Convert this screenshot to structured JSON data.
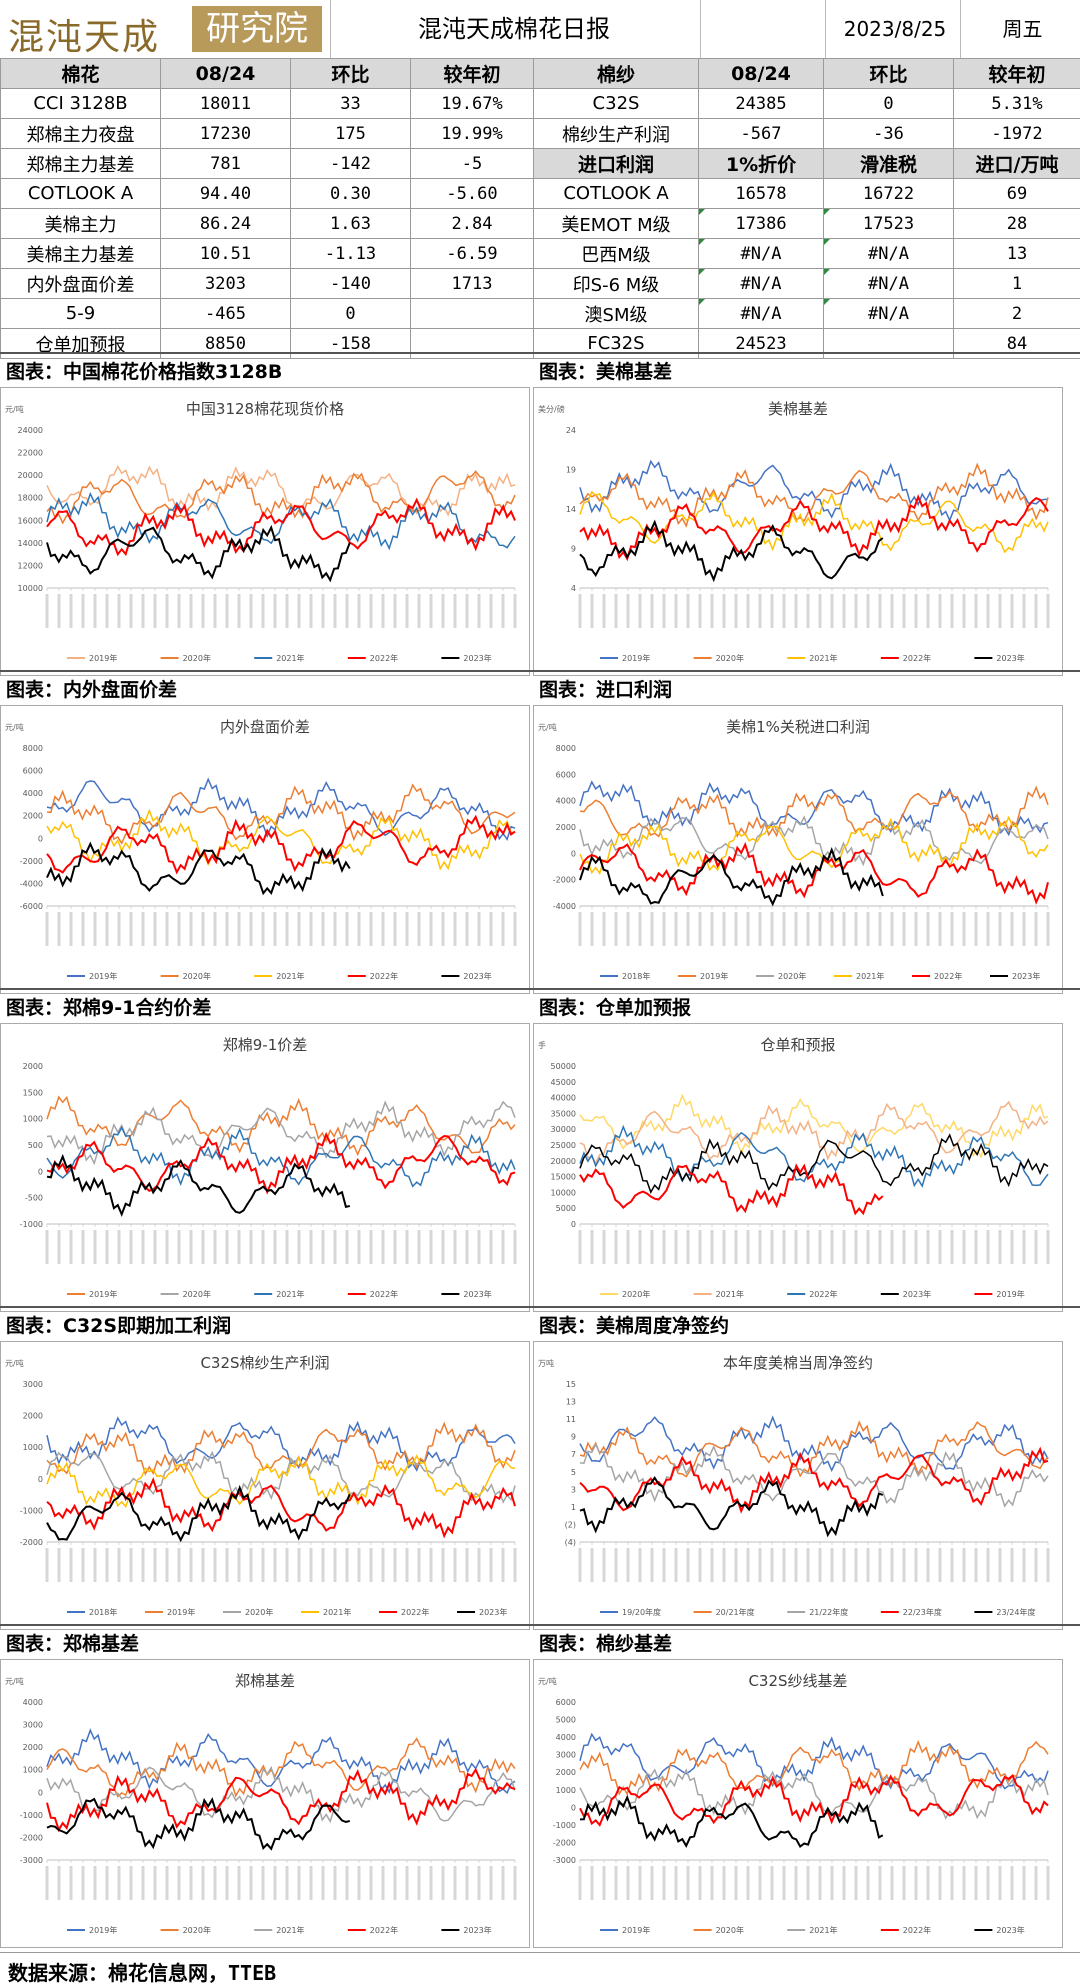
{
  "header": {
    "logo_text": "混沌天成",
    "logo_box_text": "研究院",
    "title": "混沌天成棉花日报",
    "date": "2023/8/25",
    "weekday": "周五"
  },
  "left_table": {
    "headers": [
      "棉花",
      "08/24",
      "环比",
      "较年初"
    ],
    "rows": [
      [
        "CCI 3128B",
        "18011",
        "33",
        "19.67%"
      ],
      [
        "郑棉主力夜盘",
        "17230",
        "175",
        "19.99%"
      ],
      [
        "郑棉主力基差",
        "781",
        "-142",
        "-5"
      ],
      [
        "COTLOOK A",
        "94.40",
        "0.30",
        "-5.60"
      ],
      [
        "美棉主力",
        "86.24",
        "1.63",
        "2.84"
      ],
      [
        "美棉主力基差",
        "10.51",
        "-1.13",
        "-6.59"
      ],
      [
        "内外盘面价差",
        "3203",
        "-140",
        "1713"
      ],
      [
        "5-9",
        "-465",
        "0",
        ""
      ],
      [
        "仓单加预报",
        "8850",
        "-158",
        ""
      ]
    ]
  },
  "right_table": {
    "headers": [
      "棉纱",
      "08/24",
      "环比",
      "较年初"
    ],
    "rows_top": [
      [
        "C32S",
        "24385",
        "0",
        "5.31%"
      ],
      [
        "棉纱生产利润",
        "-567",
        "-36",
        "-1972"
      ]
    ],
    "sub_headers": [
      "进口利润",
      "1%折价",
      "滑准税",
      "进口/万吨"
    ],
    "rows_bottom": [
      [
        "COTLOOK A",
        "16578",
        "16722",
        "69"
      ],
      [
        "美EMOT M级",
        "17386",
        "17523",
        "28"
      ],
      [
        "巴西M级",
        "#N/A",
        "#N/A",
        "13"
      ],
      [
        "印S-6 M级",
        "#N/A",
        "#N/A",
        "1"
      ],
      [
        "澳SM级",
        "#N/A",
        "#N/A",
        "2"
      ],
      [
        "FC32S",
        "24523",
        "",
        "84"
      ]
    ]
  },
  "panels": [
    {
      "label": "图表：中国棉花价格指数3128B",
      "chart_title": "中国3128棉花现货价格",
      "unit": "元/吨",
      "yticks": [
        "24000",
        "22000",
        "20000",
        "18000",
        "16000",
        "14000",
        "12000",
        "10000"
      ],
      "legend": [
        {
          "name": "2019年",
          "color": "#f4b183"
        },
        {
          "name": "2020年",
          "color": "#ed7d31"
        },
        {
          "name": "2021年",
          "color": "#2e75b6"
        },
        {
          "name": "2022年",
          "color": "#ff0000"
        },
        {
          "name": "2023年",
          "color": "#000000"
        }
      ]
    },
    {
      "label": "图表：美棉基差",
      "chart_title": "美棉基差",
      "unit": "美分/磅",
      "yticks": [
        "24",
        "19",
        "14",
        "9",
        "4"
      ],
      "legend": [
        {
          "name": "2019年",
          "color": "#4472c4"
        },
        {
          "name": "2020年",
          "color": "#ed7d31"
        },
        {
          "name": "2021年",
          "color": "#ffc000"
        },
        {
          "name": "2022年",
          "color": "#ff0000"
        },
        {
          "name": "2023年",
          "color": "#000000"
        }
      ]
    },
    {
      "label": "图表：内外盘面价差",
      "chart_title": "内外盘面价差",
      "unit": "元/吨",
      "yticks": [
        "8000",
        "6000",
        "4000",
        "2000",
        "0",
        "-2000",
        "-4000",
        "-6000"
      ],
      "legend": [
        {
          "name": "2019年",
          "color": "#4472c4"
        },
        {
          "name": "2020年",
          "color": "#ed7d31"
        },
        {
          "name": "2021年",
          "color": "#ffc000"
        },
        {
          "name": "2022年",
          "color": "#ff0000"
        },
        {
          "name": "2023年",
          "color": "#000000"
        }
      ]
    },
    {
      "label": "图表：进口利润",
      "chart_title": "美棉1%关税进口利润",
      "unit": "元/吨",
      "yticks": [
        "8000",
        "6000",
        "4000",
        "2000",
        "0",
        "-2000",
        "-4000"
      ],
      "legend": [
        {
          "name": "2018年",
          "color": "#4472c4"
        },
        {
          "name": "2019年",
          "color": "#ed7d31"
        },
        {
          "name": "2020年",
          "color": "#a5a5a5"
        },
        {
          "name": "2021年",
          "color": "#ffc000"
        },
        {
          "name": "2022年",
          "color": "#ff0000"
        },
        {
          "name": "2023年",
          "color": "#000000"
        }
      ]
    },
    {
      "label": "图表：郑棉9-1合约价差",
      "chart_title": "郑棉9-1价差",
      "unit": "",
      "yticks": [
        "2000",
        "1500",
        "1000",
        "500",
        "0",
        "-500",
        "-1000"
      ],
      "legend": [
        {
          "name": "2019年",
          "color": "#ed7d31"
        },
        {
          "name": "2020年",
          "color": "#a5a5a5"
        },
        {
          "name": "2021年",
          "color": "#2e75b6"
        },
        {
          "name": "2022年",
          "color": "#ff0000"
        },
        {
          "name": "2023年",
          "color": "#000000"
        }
      ]
    },
    {
      "label": "图表：仓单加预报",
      "chart_title": "仓单和预报",
      "unit": "手",
      "yticks": [
        "50000",
        "45000",
        "40000",
        "35000",
        "30000",
        "25000",
        "20000",
        "15000",
        "10000",
        "5000",
        "0"
      ],
      "legend": [
        {
          "name": "2020年",
          "color": "#ffd966"
        },
        {
          "name": "2021年",
          "color": "#f4b183"
        },
        {
          "name": "2022年",
          "color": "#2e75b6"
        },
        {
          "name": "2023年",
          "color": "#000000"
        },
        {
          "name": "2019年",
          "color": "#ff0000"
        }
      ]
    },
    {
      "label": "图表：C32S即期加工利润",
      "chart_title": "C32S棉纱生产利润",
      "unit": "元/吨",
      "yticks": [
        "3000",
        "2000",
        "1000",
        "0",
        "-1000",
        "-2000"
      ],
      "legend": [
        {
          "name": "2018年",
          "color": "#4472c4"
        },
        {
          "name": "2019年",
          "color": "#ed7d31"
        },
        {
          "name": "2020年",
          "color": "#a5a5a5"
        },
        {
          "name": "2021年",
          "color": "#ffc000"
        },
        {
          "name": "2022年",
          "color": "#ff0000"
        },
        {
          "name": "2023年",
          "color": "#000000"
        }
      ]
    },
    {
      "label": "图表：美棉周度净签约",
      "chart_title": "本年度美棉当周净签约",
      "unit": "万吨",
      "yticks": [
        "15",
        "13",
        "11",
        "9",
        "7",
        "5",
        "3",
        "1",
        "(2)",
        "(4)"
      ],
      "legend": [
        {
          "name": "19/20年度",
          "color": "#4472c4"
        },
        {
          "name": "20/21年度",
          "color": "#ed7d31"
        },
        {
          "name": "21/22年度",
          "color": "#a5a5a5"
        },
        {
          "name": "22/23年度",
          "color": "#ff0000"
        },
        {
          "name": "23/24年度",
          "color": "#000000"
        }
      ]
    },
    {
      "label": "图表：郑棉基差",
      "chart_title": "郑棉基差",
      "unit": "元/吨",
      "yticks": [
        "4000",
        "3000",
        "2000",
        "1000",
        "0",
        "-1000",
        "-2000",
        "-3000"
      ],
      "legend": [
        {
          "name": "2019年",
          "color": "#4472c4"
        },
        {
          "name": "2020年",
          "color": "#ed7d31"
        },
        {
          "name": "2021年",
          "color": "#a5a5a5"
        },
        {
          "name": "2022年",
          "color": "#ff0000"
        },
        {
          "name": "2023年",
          "color": "#000000"
        }
      ]
    },
    {
      "label": "图表：棉纱基差",
      "chart_title": "C32S纱线基差",
      "unit": "元/吨",
      "yticks": [
        "6000",
        "5000",
        "4000",
        "3000",
        "2000",
        "1000",
        "0",
        "-1000",
        "-2000",
        "-3000"
      ],
      "legend": [
        {
          "name": "2019年",
          "color": "#4472c4"
        },
        {
          "name": "2020年",
          "color": "#ed7d31"
        },
        {
          "name": "2021年",
          "color": "#a5a5a5"
        },
        {
          "name": "2022年",
          "color": "#ff0000"
        },
        {
          "name": "2023年",
          "color": "#000000"
        }
      ]
    }
  ],
  "footer": {
    "source": "数据来源：棉花信息网，TTEB"
  }
}
